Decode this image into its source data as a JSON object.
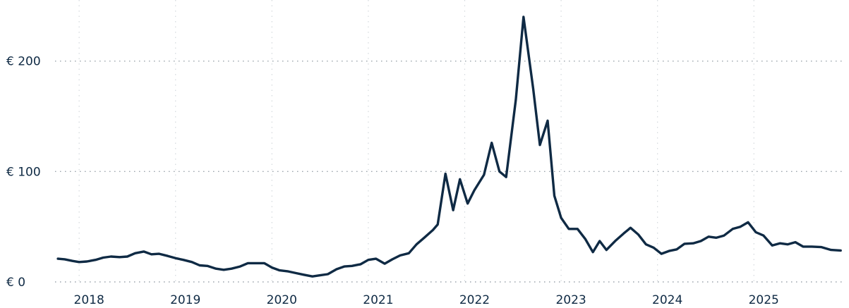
{
  "chart_data": {
    "type": "line",
    "title": "",
    "xlabel": "",
    "ylabel": "",
    "ylim": [
      0,
      240
    ],
    "xlim": [
      2017.75,
      2025.95
    ],
    "grid": {
      "horizontal": true,
      "vertical": true,
      "style": "dotted"
    },
    "legend": "none",
    "y_ticks": [
      {
        "value": 0,
        "label": "€ 0"
      },
      {
        "value": 100,
        "label": "€ 100"
      },
      {
        "value": 200,
        "label": "€ 200"
      }
    ],
    "x_ticks": [
      {
        "value": 2018,
        "label": "2018"
      },
      {
        "value": 2019,
        "label": "2019"
      },
      {
        "value": 2020,
        "label": "2020"
      },
      {
        "value": 2021,
        "label": "2021"
      },
      {
        "value": 2022,
        "label": "2022"
      },
      {
        "value": 2023,
        "label": "2023"
      },
      {
        "value": 2024,
        "label": "2024"
      },
      {
        "value": 2025,
        "label": "2025"
      }
    ],
    "series": [
      {
        "color": "#0f2a44",
        "points": [
          [
            2017.78,
            21
          ],
          [
            2017.85,
            20.5
          ],
          [
            2017.93,
            19
          ],
          [
            2018.0,
            18
          ],
          [
            2018.08,
            18.5
          ],
          [
            2018.17,
            20
          ],
          [
            2018.25,
            22
          ],
          [
            2018.33,
            23
          ],
          [
            2018.42,
            22.5
          ],
          [
            2018.5,
            23
          ],
          [
            2018.58,
            26
          ],
          [
            2018.67,
            27.5
          ],
          [
            2018.75,
            25
          ],
          [
            2018.83,
            25.5
          ],
          [
            2018.92,
            23.5
          ],
          [
            2019.0,
            21.5
          ],
          [
            2019.08,
            20
          ],
          [
            2019.17,
            18
          ],
          [
            2019.25,
            15
          ],
          [
            2019.33,
            14.5
          ],
          [
            2019.42,
            12
          ],
          [
            2019.5,
            11
          ],
          [
            2019.58,
            12
          ],
          [
            2019.67,
            14
          ],
          [
            2019.75,
            17
          ],
          [
            2019.83,
            17
          ],
          [
            2019.92,
            17
          ],
          [
            2020.0,
            13
          ],
          [
            2020.08,
            10.5
          ],
          [
            2020.17,
            9.5
          ],
          [
            2020.25,
            8
          ],
          [
            2020.33,
            6.5
          ],
          [
            2020.42,
            5
          ],
          [
            2020.5,
            6
          ],
          [
            2020.58,
            7
          ],
          [
            2020.67,
            11.5
          ],
          [
            2020.75,
            14
          ],
          [
            2020.83,
            14.5
          ],
          [
            2020.92,
            16
          ],
          [
            2021.0,
            20
          ],
          [
            2021.08,
            21
          ],
          [
            2021.17,
            16.5
          ],
          [
            2021.25,
            20.5
          ],
          [
            2021.33,
            24
          ],
          [
            2021.42,
            26
          ],
          [
            2021.5,
            34
          ],
          [
            2021.58,
            40
          ],
          [
            2021.67,
            47
          ],
          [
            2021.72,
            52
          ],
          [
            2021.8,
            98
          ],
          [
            2021.88,
            65
          ],
          [
            2021.95,
            93
          ],
          [
            2022.03,
            71
          ],
          [
            2022.1,
            83
          ],
          [
            2022.2,
            97
          ],
          [
            2022.28,
            126
          ],
          [
            2022.36,
            100
          ],
          [
            2022.43,
            95
          ],
          [
            2022.53,
            165
          ],
          [
            2022.61,
            240
          ],
          [
            2022.71,
            175
          ],
          [
            2022.78,
            124
          ],
          [
            2022.86,
            146
          ],
          [
            2022.93,
            78
          ],
          [
            2023.0,
            58
          ],
          [
            2023.08,
            48
          ],
          [
            2023.17,
            48
          ],
          [
            2023.25,
            39
          ],
          [
            2023.33,
            27
          ],
          [
            2023.4,
            37
          ],
          [
            2023.47,
            29
          ],
          [
            2023.56,
            37
          ],
          [
            2023.65,
            44
          ],
          [
            2023.72,
            49
          ],
          [
            2023.8,
            43
          ],
          [
            2023.88,
            34
          ],
          [
            2023.96,
            31
          ],
          [
            2024.04,
            25.5
          ],
          [
            2024.12,
            28
          ],
          [
            2024.2,
            29.5
          ],
          [
            2024.28,
            34.5
          ],
          [
            2024.37,
            35
          ],
          [
            2024.45,
            37
          ],
          [
            2024.53,
            41
          ],
          [
            2024.61,
            40
          ],
          [
            2024.69,
            42
          ],
          [
            2024.78,
            48
          ],
          [
            2024.86,
            50
          ],
          [
            2024.94,
            54
          ],
          [
            2025.02,
            45
          ],
          [
            2025.1,
            42
          ],
          [
            2025.19,
            33
          ],
          [
            2025.27,
            35
          ],
          [
            2025.35,
            34
          ],
          [
            2025.43,
            36
          ],
          [
            2025.51,
            32
          ],
          [
            2025.6,
            32
          ],
          [
            2025.7,
            31.5
          ],
          [
            2025.8,
            29
          ],
          [
            2025.9,
            28.5
          ]
        ]
      }
    ]
  }
}
